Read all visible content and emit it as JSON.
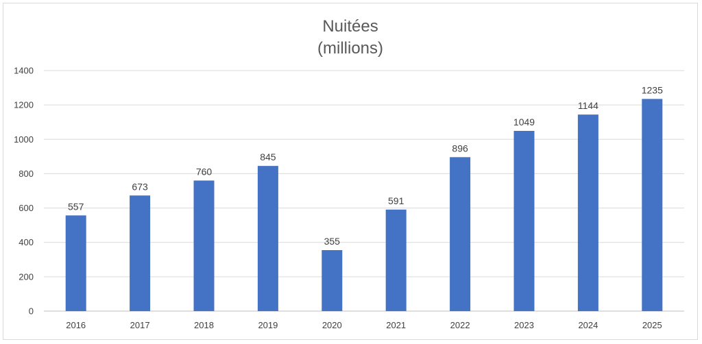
{
  "chart_data": {
    "type": "bar",
    "title": "Nuitées",
    "subtitle": "(millions)",
    "categories": [
      "2016",
      "2017",
      "2018",
      "2019",
      "2020",
      "2021",
      "2022",
      "2023",
      "2024",
      "2025"
    ],
    "values": [
      557,
      673,
      760,
      845,
      355,
      591,
      896,
      1049,
      1144,
      1235
    ],
    "data_labels": [
      "557",
      "673",
      "760",
      "845",
      "355",
      "591",
      "896",
      "1049",
      "1144",
      "1235"
    ],
    "ylim": [
      0,
      1400
    ],
    "y_ticks": [
      0,
      200,
      400,
      600,
      800,
      1000,
      1200,
      1400
    ],
    "y_tick_labels": [
      "0",
      "200",
      "400",
      "600",
      "800",
      "1000",
      "1200",
      "1400"
    ],
    "grid": true,
    "legend": "none",
    "bar_color": "#4472C4"
  }
}
